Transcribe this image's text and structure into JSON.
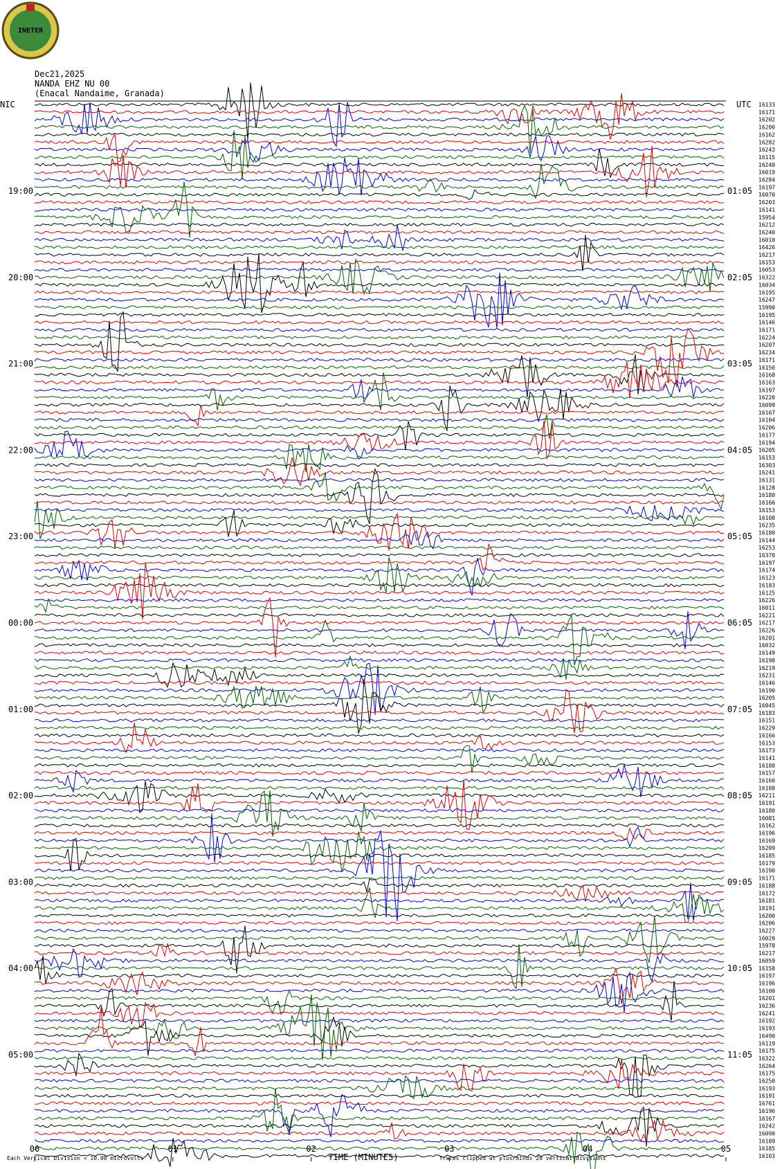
{
  "header": {
    "logo": "INETER",
    "date": "Dec21,2025",
    "station": "NANDA EHZ NU 00",
    "location": "(Enacal Nandaime, Granada)",
    "left_zone": "NIC",
    "right_zone": "UTC"
  },
  "left_times": [
    "19:00",
    "20:00",
    "21:00",
    "22:00",
    "23:00",
    "00:00",
    "01:00",
    "02:00",
    "03:00",
    "04:00",
    "05:00"
  ],
  "right_times": [
    "01:05",
    "02:05",
    "03:05",
    "04:05",
    "05:05",
    "06:05",
    "07:05",
    "08:05",
    "09:05",
    "10:05",
    "11:05"
  ],
  "trace_values": [
    16133,
    16171,
    16202,
    16200,
    16162,
    16282,
    16243,
    16115,
    16240,
    16019,
    16284,
    16197,
    16070,
    16203,
    16141,
    15954,
    16212,
    16240,
    16010,
    16426,
    16217,
    16153,
    16053,
    16322,
    16034,
    16195,
    16247,
    15990,
    16195,
    16146,
    16171,
    16224,
    16207,
    16234,
    16171,
    16156,
    16168,
    16163,
    16197,
    16220,
    16099,
    16167,
    16104,
    16206,
    16177,
    16194,
    16205,
    16153,
    16303,
    16241,
    16131,
    16128,
    16180,
    16166,
    16153,
    16108,
    16235,
    16180,
    16144,
    16253,
    16370,
    16197,
    16174,
    16123,
    16183,
    16125,
    16226,
    16011,
    16221,
    16217,
    16226,
    16201,
    16032,
    16149,
    16198,
    16219,
    16231,
    16146,
    16190,
    16205,
    16045,
    16183,
    16151,
    16229,
    16166,
    16153,
    16173,
    16141,
    16180,
    16157,
    16160,
    16188,
    16211,
    16191,
    16180,
    16081,
    16162,
    16196,
    16169,
    16209,
    16185,
    16179,
    16190,
    16171,
    16188,
    16172,
    16181,
    16191,
    16200,
    16206,
    16227,
    16020,
    15978,
    16217,
    16059,
    16158,
    16197,
    16196,
    16100,
    16201,
    16236,
    16241,
    16192,
    16193,
    16490,
    16119,
    16175,
    16322,
    16264,
    16175,
    16250,
    16193,
    16191,
    16761,
    16196,
    16167,
    16242,
    16090,
    16189,
    16185,
    16103
  ],
  "x_ticks": [
    "00",
    "01",
    "02",
    "03",
    "04",
    "05"
  ],
  "x_label": "TIME (MINUTES)",
  "footer": {
    "scale": "Each Vertical Division = 10.00 microvolts",
    "clip": "Traces clipped at plus/minus 20 vertical divisions"
  }
}
